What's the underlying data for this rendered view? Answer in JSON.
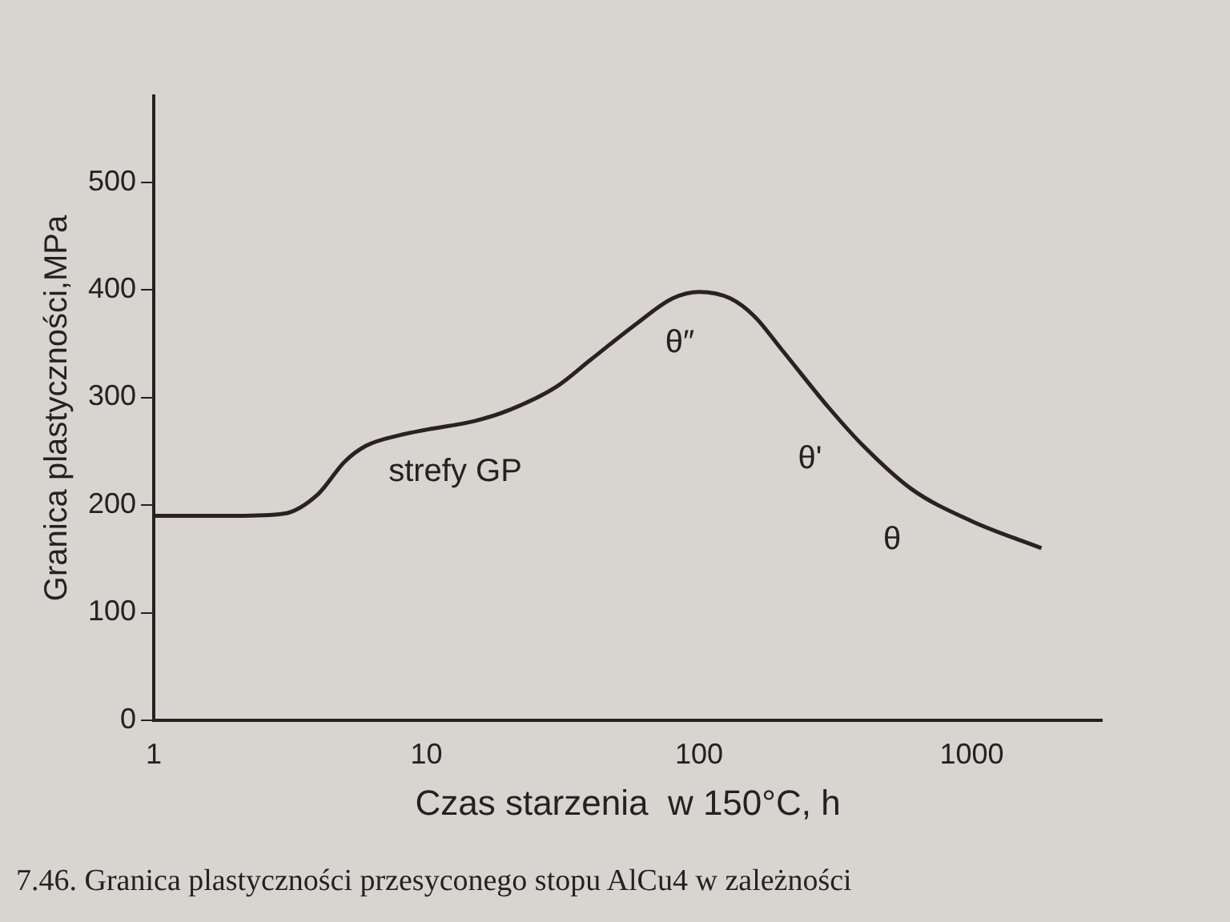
{
  "chart_data": {
    "type": "line",
    "xlabel": "Czas starzenia  w 150°C, h",
    "ylabel": "Granica plastyczności,MPa",
    "x": [
      1,
      2,
      3,
      4,
      5,
      6,
      8,
      10,
      15,
      20,
      30,
      40,
      60,
      80,
      100,
      130,
      160,
      200,
      300,
      400,
      600,
      1000,
      1800
    ],
    "series": [
      {
        "color": "#2a2220",
        "values": [
          190,
          190,
          192,
          210,
          240,
          255,
          265,
          270,
          278,
          288,
          310,
          335,
          370,
          392,
          398,
          392,
          375,
          345,
          290,
          255,
          215,
          185,
          160
        ]
      }
    ],
    "log": "x",
    "xlim": [
      1,
      3000
    ],
    "xticks": [
      1,
      10,
      100,
      1000
    ],
    "ylim": [
      0,
      580
    ],
    "yticks": [
      0,
      100,
      200,
      300,
      400,
      500
    ],
    "grid": false,
    "legend": false,
    "marker": "none",
    "line_style": "solid",
    "annotations": [
      {
        "text": "strefy GP",
        "x": 15,
        "y": 278
      },
      {
        "text": "θ″",
        "x": 100,
        "y": 398
      },
      {
        "text": "θ'",
        "x": 300,
        "y": 290
      },
      {
        "text": "θ",
        "x": 600,
        "y": 215
      },
      "7.46. Granica plastyczności przesyconego stopu AlCu4 w zależności"
    ]
  }
}
